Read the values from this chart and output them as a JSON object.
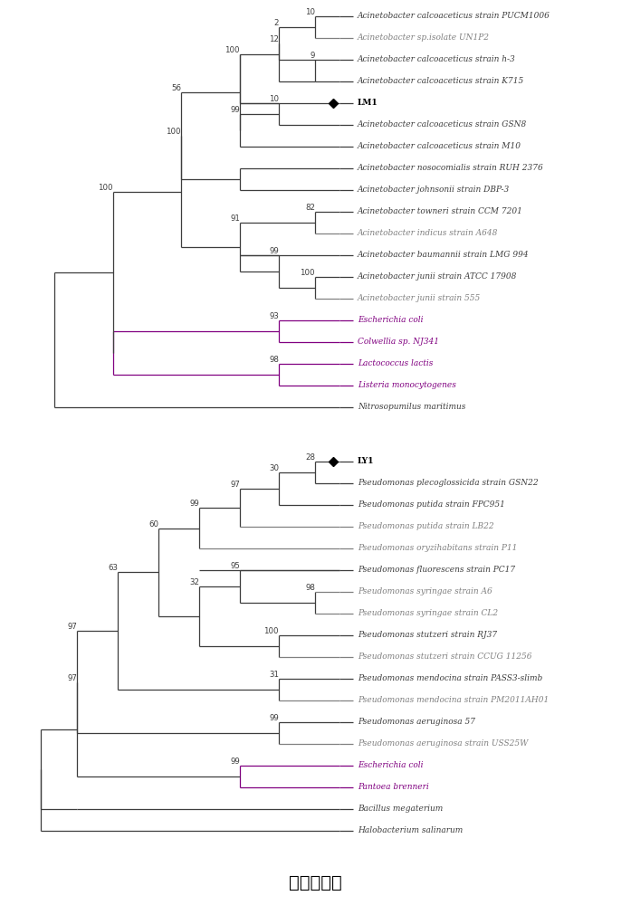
{
  "title": "系统发育树",
  "title_fontsize": 14,
  "background_color": "#ffffff",
  "tree1": {
    "taxa": [
      "Acinetobacter calcoaceticus strain PUCM1006",
      "Acinetobacter sp.isolate UN1P2",
      "Acinetobacter calcoaceticus strain h-3",
      "Acinetobacter calcoaceticus strain K715",
      "LM1",
      "Acinetobacter calcoaceticus strain GSN8",
      "Acinetobacter calcoaceticus strain M10",
      "Acinetobacter nosocomialis strain RUH 2376",
      "Acinetobacter johnsonii strain DBP-3",
      "Acinetobacter towneri strain CCM 7201",
      "Acinetobacter indicus strain A648",
      "Acinetobacter baumannii strain LMG 994",
      "Acinetobacter junii strain ATCC 17908",
      "Acinetobacter junii strain 555",
      "Escherichia coli",
      "Colwellia sp. NJ341",
      "Lactococcus lactis",
      "Listeria monocytogenes",
      "Nitrosopumilus maritimus"
    ],
    "taxa_italic": [
      true,
      true,
      true,
      true,
      false,
      true,
      true,
      true,
      true,
      true,
      true,
      true,
      true,
      true,
      true,
      true,
      true,
      true,
      true
    ],
    "taxa_bold": [
      false,
      false,
      false,
      false,
      true,
      false,
      false,
      false,
      false,
      false,
      false,
      false,
      false,
      false,
      false,
      false,
      false,
      false,
      false
    ],
    "taxa_colors": [
      "#3d3d3d",
      "#808080",
      "#3d3d3d",
      "#3d3d3d",
      "#000000",
      "#3d3d3d",
      "#3d3d3d",
      "#3d3d3d",
      "#3d3d3d",
      "#3d3d3d",
      "#808080",
      "#3d3d3d",
      "#3d3d3d",
      "#808080",
      "#800080",
      "#800080",
      "#800080",
      "#800080",
      "#3d3d3d"
    ],
    "special_marker_index": 4,
    "line_colors": [
      "#3d3d3d",
      "#808080",
      "#3d3d3d",
      "#3d3d3d",
      "#3d3d3d",
      "#3d3d3d",
      "#3d3d3d",
      "#3d3d3d",
      "#3d3d3d",
      "#3d3d3d",
      "#808080",
      "#3d3d3d",
      "#3d3d3d",
      "#808080",
      "#800080",
      "#800080",
      "#800080",
      "#800080",
      "#3d3d3d"
    ]
  },
  "tree2": {
    "taxa": [
      "LY1",
      "Pseudomonas plecoglossicida strain GSN22",
      "Pseudomonas putida strain FPC951",
      "Pseudomonas putida strain LB22",
      "Pseudomonas oryzihabitans strain P11",
      "Pseudomonas fluorescens strain PC17",
      "Pseudomonas syringae strain A6",
      "Pseudomonas syringae strain CL2",
      "Pseudomonas stutzeri strain RJ37",
      "Pseudomonas stutzeri strain CCUG 11256",
      "Pseudomonas mendocina strain PASS3-slimb",
      "Pseudomonas mendocina strain PM2011AH01",
      "Pseudomonas aeruginosa 57",
      "Pseudomonas aeruginosa strain USS25W",
      "Escherichia coli",
      "Pantoea brenneri",
      "Bacillus megaterium",
      "Halobacterium salinarum"
    ],
    "taxa_italic": [
      false,
      true,
      true,
      true,
      true,
      true,
      true,
      true,
      true,
      true,
      true,
      true,
      true,
      true,
      true,
      true,
      true,
      true
    ],
    "taxa_bold": [
      true,
      false,
      false,
      false,
      false,
      false,
      false,
      false,
      false,
      false,
      false,
      false,
      false,
      false,
      false,
      false,
      false,
      false
    ],
    "taxa_colors": [
      "#000000",
      "#3d3d3d",
      "#3d3d3d",
      "#808080",
      "#808080",
      "#3d3d3d",
      "#808080",
      "#808080",
      "#3d3d3d",
      "#808080",
      "#3d3d3d",
      "#808080",
      "#3d3d3d",
      "#808080",
      "#800080",
      "#800080",
      "#3d3d3d",
      "#3d3d3d"
    ],
    "special_marker_index": 0,
    "line_colors": [
      "#3d3d3d",
      "#3d3d3d",
      "#3d3d3d",
      "#808080",
      "#808080",
      "#3d3d3d",
      "#808080",
      "#808080",
      "#3d3d3d",
      "#808080",
      "#3d3d3d",
      "#808080",
      "#3d3d3d",
      "#808080",
      "#800080",
      "#800080",
      "#3d3d3d",
      "#3d3d3d"
    ]
  }
}
